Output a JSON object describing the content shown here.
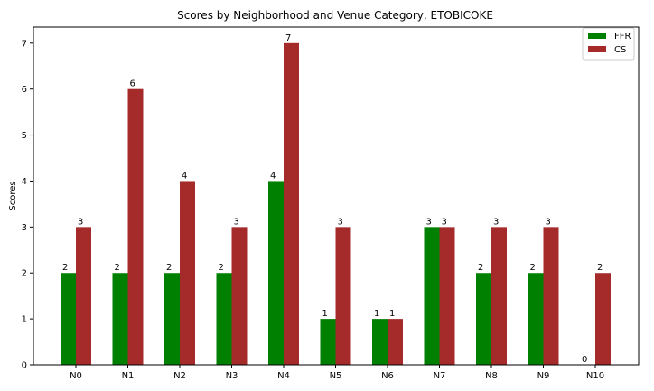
{
  "chart_data": {
    "type": "bar",
    "title": "Scores by Neighborhood and Venue Category, ETOBICOKE",
    "xlabel": "",
    "ylabel": "Scores",
    "categories": [
      "N0",
      "N1",
      "N2",
      "N3",
      "N4",
      "N5",
      "N6",
      "N7",
      "N8",
      "N9",
      "N10"
    ],
    "series": [
      {
        "name": "FFR",
        "color": "#008000",
        "values": [
          2,
          2,
          2,
          2,
          4,
          1,
          1,
          3,
          2,
          2,
          0
        ]
      },
      {
        "name": "CS",
        "color": "#a52a2a",
        "values": [
          3,
          6,
          4,
          3,
          7,
          3,
          1,
          3,
          3,
          3,
          2
        ]
      }
    ],
    "ylim": [
      0,
      7.35
    ],
    "yticks": [
      0,
      1,
      2,
      3,
      4,
      5,
      6,
      7
    ],
    "grid": false,
    "legend_position": "top-right",
    "data_labels": true
  }
}
